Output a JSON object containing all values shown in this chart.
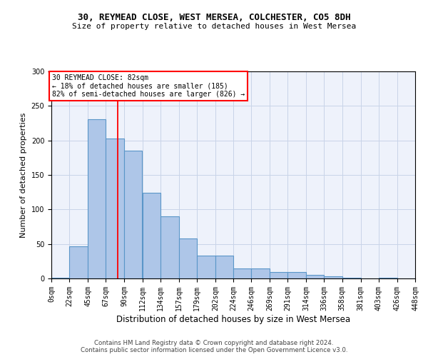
{
  "title1": "30, REYMEAD CLOSE, WEST MERSEA, COLCHESTER, CO5 8DH",
  "title2": "Size of property relative to detached houses in West Mersea",
  "xlabel": "Distribution of detached houses by size in West Mersea",
  "ylabel": "Number of detached properties",
  "footer1": "Contains HM Land Registry data © Crown copyright and database right 2024.",
  "footer2": "Contains public sector information licensed under the Open Government Licence v3.0.",
  "bins": [
    0,
    22,
    45,
    67,
    90,
    112,
    134,
    157,
    179,
    202,
    224,
    246,
    269,
    291,
    314,
    336,
    358,
    381,
    403,
    426,
    448
  ],
  "bar_labels": [
    "0sqm",
    "22sqm",
    "45sqm",
    "67sqm",
    "90sqm",
    "112sqm",
    "134sqm",
    "157sqm",
    "179sqm",
    "202sqm",
    "224sqm",
    "246sqm",
    "269sqm",
    "291sqm",
    "314sqm",
    "336sqm",
    "358sqm",
    "381sqm",
    "403sqm",
    "426sqm",
    "448sqm"
  ],
  "bar_heights": [
    1,
    47,
    231,
    203,
    185,
    124,
    90,
    58,
    33,
    33,
    15,
    15,
    9,
    9,
    5,
    3,
    1,
    0,
    1,
    0
  ],
  "bar_color": "#aec6e8",
  "bar_edge_color": "#5a96c8",
  "vline_x": 82,
  "vline_color": "red",
  "annotation_line1": "30 REYMEAD CLOSE: 82sqm",
  "annotation_line2": "← 18% of detached houses are smaller (185)",
  "annotation_line3": "82% of semi-detached houses are larger (826) →",
  "ylim": [
    0,
    300
  ],
  "grid_color": "#c8d4e8",
  "background_color": "#eef2fb"
}
